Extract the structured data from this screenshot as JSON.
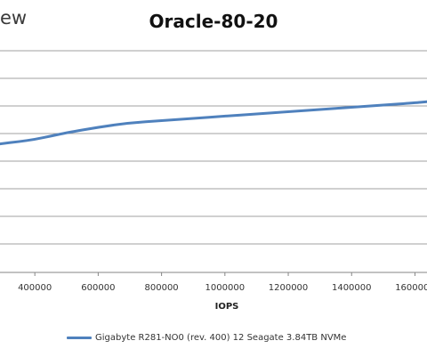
{
  "logo_fragment": "ew",
  "colors": {
    "series": "#4f81bd",
    "grid": "#a0a0a0",
    "axis": "#868686"
  },
  "chart_data": {
    "type": "line",
    "title": "Oracle-80-20",
    "xlabel": "IOPS",
    "ylabel": "",
    "x_ticks": [
      400000,
      600000,
      800000,
      1000000,
      1200000,
      1400000,
      1600000
    ],
    "x_tick_labels": [
      "400000",
      "600000",
      "800000",
      "1000000",
      "1200000",
      "1400000",
      "1600000"
    ],
    "xlim": [
      290000,
      1638000
    ],
    "ylim": [
      0,
      10
    ],
    "grid": true,
    "legend": "bottom",
    "series": [
      {
        "name": "Gigabyte R281-NO0 (rev. 400) 12 Seagate 3.84TB NVMe",
        "x": [
          290000,
          350000,
          400000,
          450000,
          500000,
          600000,
          700000,
          800000,
          900000,
          1000000,
          1100000,
          1200000,
          1300000,
          1400000,
          1500000,
          1600000,
          1638000
        ],
        "y": [
          5.8,
          5.9,
          6.0,
          6.15,
          6.3,
          6.55,
          6.75,
          6.85,
          6.95,
          7.05,
          7.15,
          7.25,
          7.35,
          7.45,
          7.55,
          7.65,
          7.7
        ]
      }
    ]
  }
}
